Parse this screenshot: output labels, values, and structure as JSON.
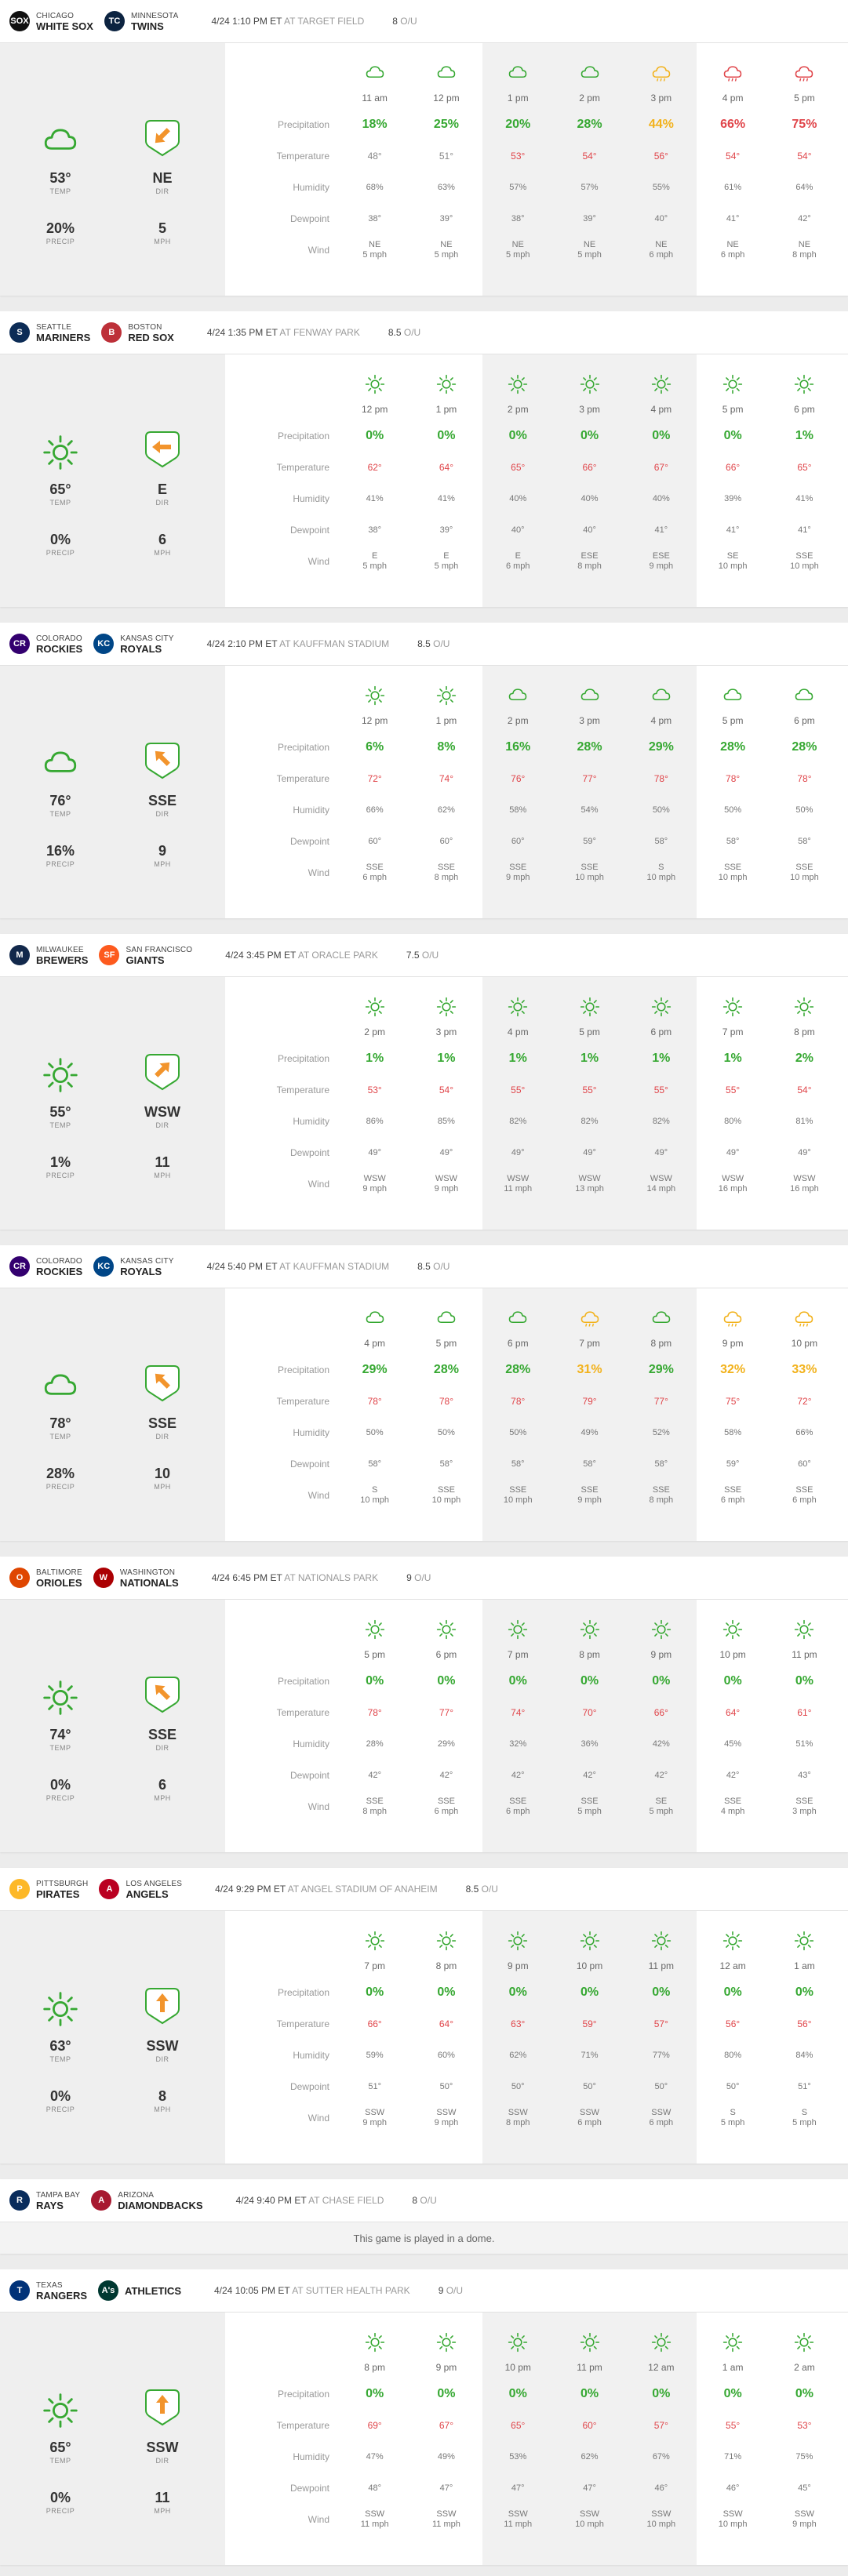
{
  "colors": {
    "green": "#36a832",
    "orange": "#f2b21c",
    "red": "#e0454a",
    "temp_red": "#e0454a",
    "icon_orange": "#f2942c"
  },
  "labels": {
    "temp": "TEMP",
    "precip": "PRECIP",
    "dir": "DIR",
    "mph": "MPH",
    "ou": "O/U",
    "at": "AT",
    "rows": [
      "Precipitation",
      "Temperature",
      "Humidity",
      "Dewpoint",
      "Wind"
    ]
  },
  "games": [
    {
      "away": {
        "city": "CHICAGO",
        "name": "WHITE SOX",
        "abbr": "SOX",
        "color": "#111111"
      },
      "home": {
        "city": "MINNESOTA",
        "name": "TWINS",
        "abbr": "TC",
        "color": "#0c2340"
      },
      "time": "4/24 1:10 PM ET",
      "venue": "TARGET FIELD",
      "ou": "8",
      "summary": {
        "cond": "cloud",
        "temp": "53°",
        "precip": "20%",
        "dir": "NE",
        "mph": "5",
        "arrow": "sw"
      },
      "shade": [
        2,
        3,
        4
      ],
      "hours": [
        {
          "t": "11 am",
          "icon": "cloud",
          "p": "18%",
          "pc": "green",
          "temp": "48°",
          "hum": "68%",
          "dew": "38°",
          "wd": "NE",
          "ws": "5 mph"
        },
        {
          "t": "12 pm",
          "icon": "cloud",
          "p": "25%",
          "pc": "green",
          "temp": "51°",
          "hum": "63%",
          "dew": "39°",
          "wd": "NE",
          "ws": "5 mph"
        },
        {
          "t": "1 pm",
          "icon": "cloud",
          "p": "20%",
          "pc": "green",
          "temp": "53°",
          "hum": "57%",
          "dew": "38°",
          "wd": "NE",
          "ws": "5 mph"
        },
        {
          "t": "2 pm",
          "icon": "cloud",
          "p": "28%",
          "pc": "green",
          "temp": "54°",
          "hum": "57%",
          "dew": "39°",
          "wd": "NE",
          "ws": "5 mph"
        },
        {
          "t": "3 pm",
          "icon": "cloud-rain-orange",
          "p": "44%",
          "pc": "orange",
          "temp": "56°",
          "hum": "55%",
          "dew": "40°",
          "wd": "NE",
          "ws": "6 mph"
        },
        {
          "t": "4 pm",
          "icon": "cloud-rain-red",
          "p": "66%",
          "pc": "red",
          "temp": "54°",
          "hum": "61%",
          "dew": "41°",
          "wd": "NE",
          "ws": "6 mph"
        },
        {
          "t": "5 pm",
          "icon": "cloud-rain-red",
          "p": "75%",
          "pc": "red",
          "temp": "54°",
          "hum": "64%",
          "dew": "42°",
          "wd": "NE",
          "ws": "8 mph"
        }
      ]
    },
    {
      "away": {
        "city": "SEATTLE",
        "name": "MARINERS",
        "abbr": "S",
        "color": "#0c2c56"
      },
      "home": {
        "city": "BOSTON",
        "name": "RED SOX",
        "abbr": "B",
        "color": "#bd3039"
      },
      "time": "4/24 1:35 PM ET",
      "venue": "FENWAY PARK",
      "ou": "8.5",
      "summary": {
        "cond": "sun",
        "temp": "65°",
        "precip": "0%",
        "dir": "E",
        "mph": "6",
        "arrow": "w"
      },
      "shade": [
        2,
        3,
        4
      ],
      "hours": [
        {
          "t": "12 pm",
          "icon": "sun",
          "p": "0%",
          "pc": "green",
          "temp": "62°",
          "hum": "41%",
          "dew": "38°",
          "wd": "E",
          "ws": "5 mph"
        },
        {
          "t": "1 pm",
          "icon": "sun",
          "p": "0%",
          "pc": "green",
          "temp": "64°",
          "hum": "41%",
          "dew": "39°",
          "wd": "E",
          "ws": "5 mph"
        },
        {
          "t": "2 pm",
          "icon": "sun",
          "p": "0%",
          "pc": "green",
          "temp": "65°",
          "hum": "40%",
          "dew": "40°",
          "wd": "E",
          "ws": "6 mph"
        },
        {
          "t": "3 pm",
          "icon": "sun",
          "p": "0%",
          "pc": "green",
          "temp": "66°",
          "hum": "40%",
          "dew": "40°",
          "wd": "ESE",
          "ws": "8 mph"
        },
        {
          "t": "4 pm",
          "icon": "sun",
          "p": "0%",
          "pc": "green",
          "temp": "67°",
          "hum": "40%",
          "dew": "41°",
          "wd": "ESE",
          "ws": "9 mph"
        },
        {
          "t": "5 pm",
          "icon": "sun",
          "p": "0%",
          "pc": "green",
          "temp": "66°",
          "hum": "39%",
          "dew": "41°",
          "wd": "SE",
          "ws": "10 mph"
        },
        {
          "t": "6 pm",
          "icon": "sun",
          "p": "1%",
          "pc": "green",
          "temp": "65°",
          "hum": "41%",
          "dew": "41°",
          "wd": "SSE",
          "ws": "10 mph"
        }
      ]
    },
    {
      "away": {
        "city": "COLORADO",
        "name": "ROCKIES",
        "abbr": "CR",
        "color": "#33006f"
      },
      "home": {
        "city": "KANSAS CITY",
        "name": "ROYALS",
        "abbr": "KC",
        "color": "#004687"
      },
      "time": "4/24 2:10 PM ET",
      "venue": "KAUFFMAN STADIUM",
      "ou": "8.5",
      "summary": {
        "cond": "cloud",
        "temp": "76°",
        "precip": "16%",
        "dir": "SSE",
        "mph": "9",
        "arrow": "nw"
      },
      "shade": [
        2,
        3,
        4
      ],
      "hours": [
        {
          "t": "12 pm",
          "icon": "sun",
          "p": "6%",
          "pc": "green",
          "temp": "72°",
          "hum": "66%",
          "dew": "60°",
          "wd": "SSE",
          "ws": "6 mph"
        },
        {
          "t": "1 pm",
          "icon": "sun",
          "p": "8%",
          "pc": "green",
          "temp": "74°",
          "hum": "62%",
          "dew": "60°",
          "wd": "SSE",
          "ws": "8 mph"
        },
        {
          "t": "2 pm",
          "icon": "cloud",
          "p": "16%",
          "pc": "green",
          "temp": "76°",
          "hum": "58%",
          "dew": "60°",
          "wd": "SSE",
          "ws": "9 mph"
        },
        {
          "t": "3 pm",
          "icon": "cloud",
          "p": "28%",
          "pc": "green",
          "temp": "77°",
          "hum": "54%",
          "dew": "59°",
          "wd": "SSE",
          "ws": "10 mph"
        },
        {
          "t": "4 pm",
          "icon": "cloud",
          "p": "29%",
          "pc": "green",
          "temp": "78°",
          "hum": "50%",
          "dew": "58°",
          "wd": "S",
          "ws": "10 mph"
        },
        {
          "t": "5 pm",
          "icon": "cloud",
          "p": "28%",
          "pc": "green",
          "temp": "78°",
          "hum": "50%",
          "dew": "58°",
          "wd": "SSE",
          "ws": "10 mph"
        },
        {
          "t": "6 pm",
          "icon": "cloud",
          "p": "28%",
          "pc": "green",
          "temp": "78°",
          "hum": "50%",
          "dew": "58°",
          "wd": "SSE",
          "ws": "10 mph"
        }
      ]
    },
    {
      "away": {
        "city": "MILWAUKEE",
        "name": "BREWERS",
        "abbr": "M",
        "color": "#12284b"
      },
      "home": {
        "city": "SAN FRANCISCO",
        "name": "GIANTS",
        "abbr": "SF",
        "color": "#fd5a1e"
      },
      "time": "4/24 3:45 PM ET",
      "venue": "ORACLE PARK",
      "ou": "7.5",
      "summary": {
        "cond": "sun",
        "temp": "55°",
        "precip": "1%",
        "dir": "WSW",
        "mph": "11",
        "arrow": "ne"
      },
      "shade": [
        2,
        3,
        4
      ],
      "hours": [
        {
          "t": "2 pm",
          "icon": "sun",
          "p": "1%",
          "pc": "green",
          "temp": "53°",
          "hum": "86%",
          "dew": "49°",
          "wd": "WSW",
          "ws": "9 mph"
        },
        {
          "t": "3 pm",
          "icon": "sun",
          "p": "1%",
          "pc": "green",
          "temp": "54°",
          "hum": "85%",
          "dew": "49°",
          "wd": "WSW",
          "ws": "9 mph"
        },
        {
          "t": "4 pm",
          "icon": "sun",
          "p": "1%",
          "pc": "green",
          "temp": "55°",
          "hum": "82%",
          "dew": "49°",
          "wd": "WSW",
          "ws": "11 mph"
        },
        {
          "t": "5 pm",
          "icon": "sun",
          "p": "1%",
          "pc": "green",
          "temp": "55°",
          "hum": "82%",
          "dew": "49°",
          "wd": "WSW",
          "ws": "13 mph"
        },
        {
          "t": "6 pm",
          "icon": "sun",
          "p": "1%",
          "pc": "green",
          "temp": "55°",
          "hum": "82%",
          "dew": "49°",
          "wd": "WSW",
          "ws": "14 mph"
        },
        {
          "t": "7 pm",
          "icon": "sun",
          "p": "1%",
          "pc": "green",
          "temp": "55°",
          "hum": "80%",
          "dew": "49°",
          "wd": "WSW",
          "ws": "16 mph"
        },
        {
          "t": "8 pm",
          "icon": "sun",
          "p": "2%",
          "pc": "green",
          "temp": "54°",
          "hum": "81%",
          "dew": "49°",
          "wd": "WSW",
          "ws": "16 mph"
        }
      ]
    },
    {
      "away": {
        "city": "COLORADO",
        "name": "ROCKIES",
        "abbr": "CR",
        "color": "#33006f"
      },
      "home": {
        "city": "KANSAS CITY",
        "name": "ROYALS",
        "abbr": "KC",
        "color": "#004687"
      },
      "time": "4/24 5:40 PM ET",
      "venue": "KAUFFMAN STADIUM",
      "ou": "8.5",
      "summary": {
        "cond": "cloud",
        "temp": "78°",
        "precip": "28%",
        "dir": "SSE",
        "mph": "10",
        "arrow": "nw"
      },
      "shade": [
        2,
        3,
        4
      ],
      "hours": [
        {
          "t": "4 pm",
          "icon": "cloud",
          "p": "29%",
          "pc": "green",
          "temp": "78°",
          "hum": "50%",
          "dew": "58°",
          "wd": "S",
          "ws": "10 mph"
        },
        {
          "t": "5 pm",
          "icon": "cloud",
          "p": "28%",
          "pc": "green",
          "temp": "78°",
          "hum": "50%",
          "dew": "58°",
          "wd": "SSE",
          "ws": "10 mph"
        },
        {
          "t": "6 pm",
          "icon": "cloud",
          "p": "28%",
          "pc": "green",
          "temp": "78°",
          "hum": "50%",
          "dew": "58°",
          "wd": "SSE",
          "ws": "10 mph"
        },
        {
          "t": "7 pm",
          "icon": "cloud-rain-orange",
          "p": "31%",
          "pc": "orange",
          "temp": "79°",
          "hum": "49%",
          "dew": "58°",
          "wd": "SSE",
          "ws": "9 mph"
        },
        {
          "t": "8 pm",
          "icon": "cloud",
          "p": "29%",
          "pc": "green",
          "temp": "77°",
          "hum": "52%",
          "dew": "58°",
          "wd": "SSE",
          "ws": "8 mph"
        },
        {
          "t": "9 pm",
          "icon": "cloud-rain-orange",
          "p": "32%",
          "pc": "orange",
          "temp": "75°",
          "hum": "58%",
          "dew": "59°",
          "wd": "SSE",
          "ws": "6 mph"
        },
        {
          "t": "10 pm",
          "icon": "cloud-rain-orange",
          "p": "33%",
          "pc": "orange",
          "temp": "72°",
          "hum": "66%",
          "dew": "60°",
          "wd": "SSE",
          "ws": "6 mph"
        }
      ]
    },
    {
      "away": {
        "city": "BALTIMORE",
        "name": "ORIOLES",
        "abbr": "O",
        "color": "#df4601"
      },
      "home": {
        "city": "WASHINGTON",
        "name": "NATIONALS",
        "abbr": "W",
        "color": "#ab0003"
      },
      "time": "4/24 6:45 PM ET",
      "venue": "NATIONALS PARK",
      "ou": "9",
      "summary": {
        "cond": "sun",
        "temp": "74°",
        "precip": "0%",
        "dir": "SSE",
        "mph": "6",
        "arrow": "nw"
      },
      "shade": [
        2,
        3,
        4
      ],
      "hours": [
        {
          "t": "5 pm",
          "icon": "sun",
          "p": "0%",
          "pc": "green",
          "temp": "78°",
          "hum": "28%",
          "dew": "42°",
          "wd": "SSE",
          "ws": "8 mph"
        },
        {
          "t": "6 pm",
          "icon": "sun",
          "p": "0%",
          "pc": "green",
          "temp": "77°",
          "hum": "29%",
          "dew": "42°",
          "wd": "SSE",
          "ws": "6 mph"
        },
        {
          "t": "7 pm",
          "icon": "sun",
          "p": "0%",
          "pc": "green",
          "temp": "74°",
          "hum": "32%",
          "dew": "42°",
          "wd": "SSE",
          "ws": "6 mph"
        },
        {
          "t": "8 pm",
          "icon": "sun",
          "p": "0%",
          "pc": "green",
          "temp": "70°",
          "hum": "36%",
          "dew": "42°",
          "wd": "SSE",
          "ws": "5 mph"
        },
        {
          "t": "9 pm",
          "icon": "sun",
          "p": "0%",
          "pc": "green",
          "temp": "66°",
          "hum": "42%",
          "dew": "42°",
          "wd": "SE",
          "ws": "5 mph"
        },
        {
          "t": "10 pm",
          "icon": "sun",
          "p": "0%",
          "pc": "green",
          "temp": "64°",
          "hum": "45%",
          "dew": "42°",
          "wd": "SSE",
          "ws": "4 mph"
        },
        {
          "t": "11 pm",
          "icon": "sun",
          "p": "0%",
          "pc": "green",
          "temp": "61°",
          "hum": "51%",
          "dew": "43°",
          "wd": "SSE",
          "ws": "3 mph"
        }
      ]
    },
    {
      "away": {
        "city": "PITTSBURGH",
        "name": "PIRATES",
        "abbr": "P",
        "color": "#fdb827"
      },
      "home": {
        "city": "LOS ANGELES",
        "name": "ANGELS",
        "abbr": "A",
        "color": "#ba0021"
      },
      "time": "4/24 9:29 PM ET",
      "venue": "ANGEL STADIUM OF ANAHEIM",
      "ou": "8.5",
      "summary": {
        "cond": "sun",
        "temp": "63°",
        "precip": "0%",
        "dir": "SSW",
        "mph": "8",
        "arrow": "n"
      },
      "shade": [
        2,
        3,
        4
      ],
      "hours": [
        {
          "t": "7 pm",
          "icon": "sun",
          "p": "0%",
          "pc": "green",
          "temp": "66°",
          "hum": "59%",
          "dew": "51°",
          "wd": "SSW",
          "ws": "9 mph"
        },
        {
          "t": "8 pm",
          "icon": "sun",
          "p": "0%",
          "pc": "green",
          "temp": "64°",
          "hum": "60%",
          "dew": "50°",
          "wd": "SSW",
          "ws": "9 mph"
        },
        {
          "t": "9 pm",
          "icon": "sun",
          "p": "0%",
          "pc": "green",
          "temp": "63°",
          "hum": "62%",
          "dew": "50°",
          "wd": "SSW",
          "ws": "8 mph"
        },
        {
          "t": "10 pm",
          "icon": "sun",
          "p": "0%",
          "pc": "green",
          "temp": "59°",
          "hum": "71%",
          "dew": "50°",
          "wd": "SSW",
          "ws": "6 mph"
        },
        {
          "t": "11 pm",
          "icon": "sun",
          "p": "0%",
          "pc": "green",
          "temp": "57°",
          "hum": "77%",
          "dew": "50°",
          "wd": "SSW",
          "ws": "6 mph"
        },
        {
          "t": "12 am",
          "icon": "sun",
          "p": "0%",
          "pc": "green",
          "temp": "56°",
          "hum": "80%",
          "dew": "50°",
          "wd": "S",
          "ws": "5 mph"
        },
        {
          "t": "1 am",
          "icon": "sun",
          "p": "0%",
          "pc": "green",
          "temp": "56°",
          "hum": "84%",
          "dew": "51°",
          "wd": "S",
          "ws": "5 mph"
        }
      ]
    },
    {
      "away": {
        "city": "TAMPA BAY",
        "name": "RAYS",
        "abbr": "R",
        "color": "#092c5c"
      },
      "home": {
        "city": "ARIZONA",
        "name": "DIAMONDBACKS",
        "abbr": "A",
        "color": "#a71930"
      },
      "time": "4/24 9:40 PM ET",
      "venue": "CHASE FIELD",
      "ou": "8",
      "dome": "This game is played in a dome."
    },
    {
      "away": {
        "city": "TEXAS",
        "name": "RANGERS",
        "abbr": "T",
        "color": "#003278"
      },
      "home": {
        "city": "",
        "name": "ATHLETICS",
        "abbr": "A's",
        "color": "#003831"
      },
      "time": "4/24 10:05 PM ET",
      "venue": "SUTTER HEALTH PARK",
      "ou": "9",
      "summary": {
        "cond": "sun",
        "temp": "65°",
        "precip": "0%",
        "dir": "SSW",
        "mph": "11",
        "arrow": "n"
      },
      "shade": [
        2,
        3,
        4
      ],
      "hours": [
        {
          "t": "8 pm",
          "icon": "sun",
          "p": "0%",
          "pc": "green",
          "temp": "69°",
          "hum": "47%",
          "dew": "48°",
          "wd": "SSW",
          "ws": "11 mph"
        },
        {
          "t": "9 pm",
          "icon": "sun",
          "p": "0%",
          "pc": "green",
          "temp": "67°",
          "hum": "49%",
          "dew": "47°",
          "wd": "SSW",
          "ws": "11 mph"
        },
        {
          "t": "10 pm",
          "icon": "sun",
          "p": "0%",
          "pc": "green",
          "temp": "65°",
          "hum": "53%",
          "dew": "47°",
          "wd": "SSW",
          "ws": "11 mph"
        },
        {
          "t": "11 pm",
          "icon": "sun",
          "p": "0%",
          "pc": "green",
          "temp": "60°",
          "hum": "62%",
          "dew": "47°",
          "wd": "SSW",
          "ws": "10 mph"
        },
        {
          "t": "12 am",
          "icon": "sun",
          "p": "0%",
          "pc": "green",
          "temp": "57°",
          "hum": "67%",
          "dew": "46°",
          "wd": "SSW",
          "ws": "10 mph"
        },
        {
          "t": "1 am",
          "icon": "sun",
          "p": "0%",
          "pc": "green",
          "temp": "55°",
          "hum": "71%",
          "dew": "46°",
          "wd": "SSW",
          "ws": "10 mph"
        },
        {
          "t": "2 am",
          "icon": "sun",
          "p": "0%",
          "pc": "green",
          "temp": "53°",
          "hum": "75%",
          "dew": "45°",
          "wd": "SSW",
          "ws": "9 mph"
        }
      ]
    }
  ]
}
